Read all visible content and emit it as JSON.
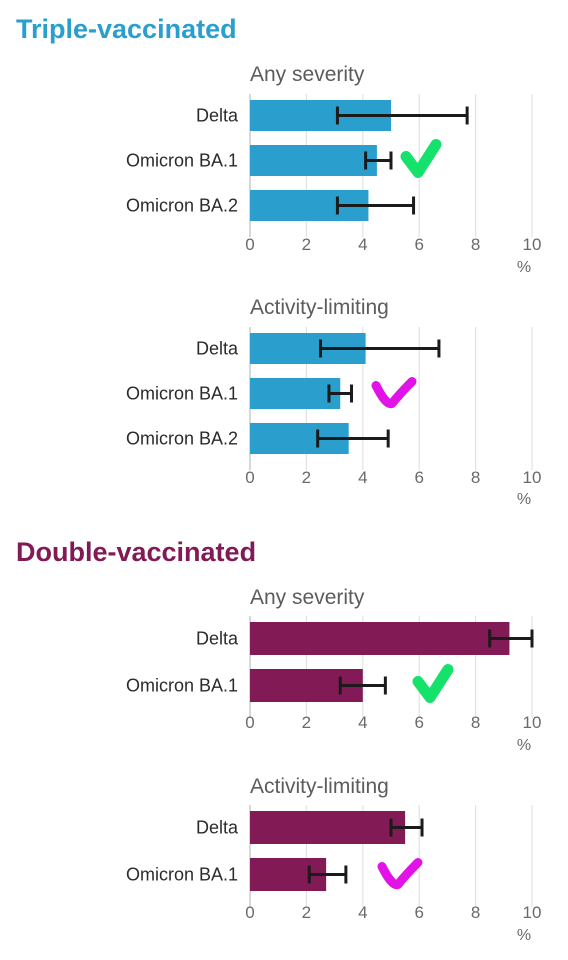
{
  "sections": [
    {
      "title": "Triple-vaccinated",
      "color": "#2a9fce"
    },
    {
      "title": "Double-vaccinated",
      "color": "#811a55"
    }
  ],
  "check_colors": {
    "green": "#14e26b",
    "magenta": "#e113e6"
  },
  "chart_data": [
    {
      "type": "bar",
      "orientation": "horizontal",
      "section": "Triple-vaccinated",
      "title": "Any severity",
      "categories": [
        "Delta",
        "Omicron BA.1",
        "Omicron BA.2"
      ],
      "values": [
        5.0,
        4.5,
        4.2
      ],
      "error_low": [
        3.1,
        4.1,
        3.1
      ],
      "error_high": [
        7.7,
        5.0,
        5.8
      ],
      "xlim": [
        0,
        10
      ],
      "ticks": [
        "0",
        "2",
        "4",
        "6",
        "8",
        "10"
      ],
      "xlabel": "%",
      "bar_color": "#2a9fce",
      "grid": true,
      "check_mark": {
        "color": "green",
        "category": "Omicron BA.1"
      }
    },
    {
      "type": "bar",
      "orientation": "horizontal",
      "section": "Triple-vaccinated",
      "title": "Activity-limiting",
      "categories": [
        "Delta",
        "Omicron BA.1",
        "Omicron BA.2"
      ],
      "values": [
        4.1,
        3.2,
        3.5
      ],
      "error_low": [
        2.5,
        2.8,
        2.4
      ],
      "error_high": [
        6.7,
        3.6,
        4.9
      ],
      "xlim": [
        0,
        10
      ],
      "ticks": [
        "0",
        "2",
        "4",
        "6",
        "8",
        "10"
      ],
      "xlabel": "%",
      "bar_color": "#2a9fce",
      "grid": true,
      "check_mark": {
        "color": "magenta",
        "category": "Omicron BA.1"
      }
    },
    {
      "type": "bar",
      "orientation": "horizontal",
      "section": "Double-vaccinated",
      "title": "Any severity",
      "categories": [
        "Delta",
        "Omicron BA.1"
      ],
      "values": [
        9.2,
        4.0
      ],
      "error_low": [
        8.5,
        3.2
      ],
      "error_high": [
        10.0,
        4.8
      ],
      "xlim": [
        0,
        10
      ],
      "ticks": [
        "0",
        "2",
        "4",
        "6",
        "8",
        "10"
      ],
      "xlabel": "%",
      "bar_color": "#811a55",
      "grid": true,
      "check_mark": {
        "color": "green",
        "category": "Omicron BA.1"
      }
    },
    {
      "type": "bar",
      "orientation": "horizontal",
      "section": "Double-vaccinated",
      "title": "Activity-limiting",
      "categories": [
        "Delta",
        "Omicron BA.1"
      ],
      "values": [
        5.5,
        2.7
      ],
      "error_low": [
        5.0,
        2.1
      ],
      "error_high": [
        6.1,
        3.4
      ],
      "xlim": [
        0,
        10
      ],
      "ticks": [
        "0",
        "2",
        "4",
        "6",
        "8",
        "10"
      ],
      "xlabel": "%",
      "bar_color": "#811a55",
      "grid": true,
      "check_mark": {
        "color": "magenta",
        "category": "Omicron BA.1"
      }
    }
  ]
}
